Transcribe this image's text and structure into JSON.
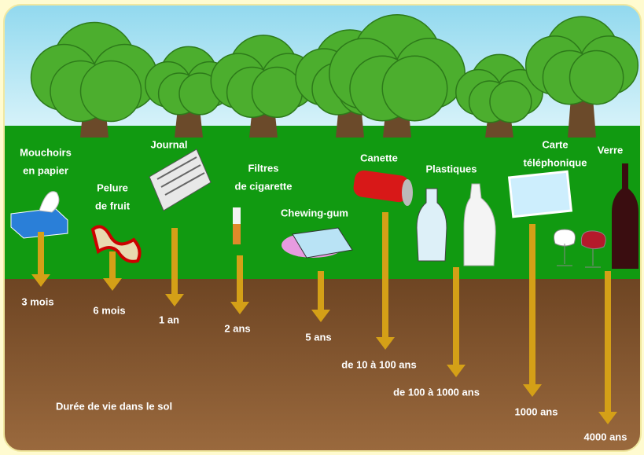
{
  "items": [
    {
      "label": [
        "Mouchoirs",
        "en papier"
      ],
      "duration": "3 mois"
    },
    {
      "label": [
        "Pelure",
        "de fruit"
      ],
      "duration": "6 mois"
    },
    {
      "label": [
        "Journal"
      ],
      "duration": "1 an"
    },
    {
      "label": [
        "Filtres",
        "de cigarette"
      ],
      "duration": "2 ans"
    },
    {
      "label": [
        "Chewing-gum"
      ],
      "duration": "5 ans"
    },
    {
      "label": [
        "Canette"
      ],
      "duration": "de 10 à 100 ans"
    },
    {
      "label": [
        "Plastiques"
      ],
      "duration": "de 100 à 1000 ans"
    },
    {
      "label": [
        "Carte",
        "téléphonique"
      ],
      "duration": "1000 ans"
    },
    {
      "label": [
        "Verre"
      ],
      "duration": "4000 ans"
    }
  ],
  "footer": "Durée de vie dans le sol"
}
